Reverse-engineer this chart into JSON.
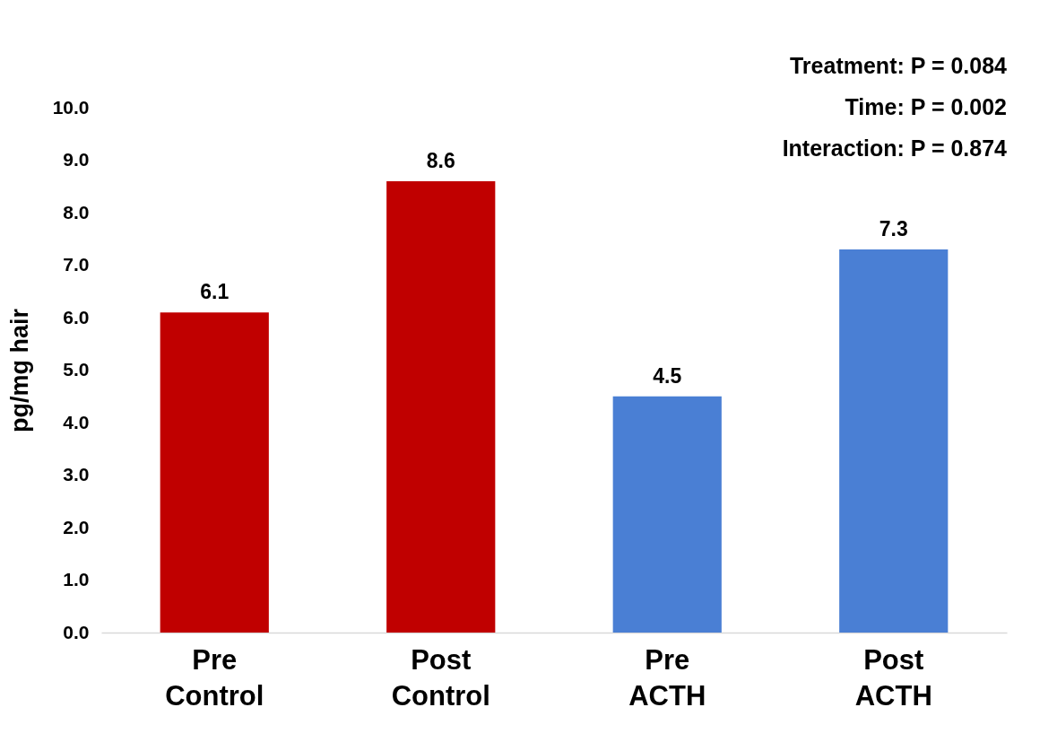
{
  "chart_data": {
    "type": "bar",
    "ylabel": "pg/mg hair",
    "categories": [
      "Pre\nControl",
      "Post\nControl",
      "Pre\nACTH",
      "Post\nACTH"
    ],
    "values": [
      6.1,
      8.6,
      4.5,
      7.3
    ],
    "colors": [
      "#c00000",
      "#c00000",
      "#4a7fd4",
      "#4a7fd4"
    ],
    "ylim": [
      0,
      10
    ],
    "yticks": [
      {
        "value": 0,
        "label": "0.0"
      },
      {
        "value": 1,
        "label": "1.0"
      },
      {
        "value": 2,
        "label": "2.0"
      },
      {
        "value": 3,
        "label": "3.0"
      },
      {
        "value": 4,
        "label": "4.0"
      },
      {
        "value": 5,
        "label": "5.0"
      },
      {
        "value": 6,
        "label": "6.0"
      },
      {
        "value": 7,
        "label": "7.0"
      },
      {
        "value": 8,
        "label": "8.0"
      },
      {
        "value": 9,
        "label": "9.0"
      },
      {
        "value": 10,
        "label": "10.0"
      }
    ],
    "data_labels": true,
    "grid": false,
    "annotations": [
      "Treatment: P = 0.084",
      "Time: P = 0.002",
      "Interaction: P = 0.874"
    ]
  }
}
